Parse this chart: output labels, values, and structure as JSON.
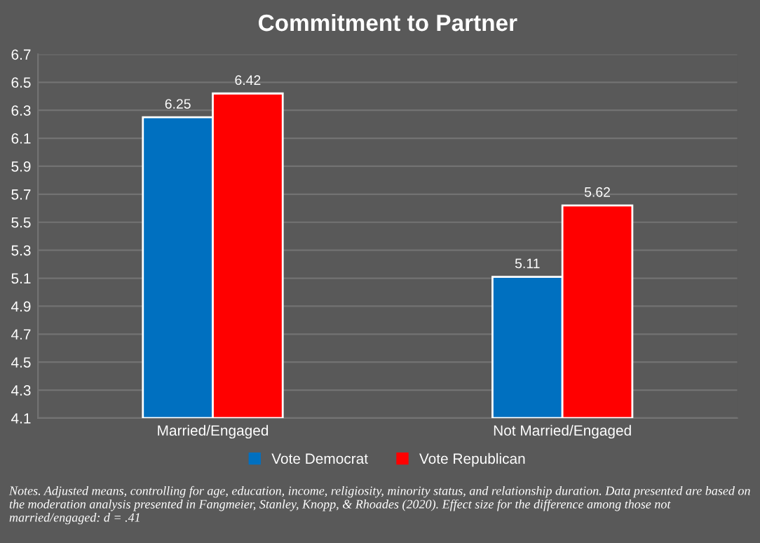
{
  "chart_data": {
    "type": "bar",
    "title": "Commitment to Partner",
    "categories": [
      "Married/Engaged",
      "Not Married/Engaged"
    ],
    "series": [
      {
        "name": "Vote Democrat",
        "color": "#0070c0",
        "values": [
          6.25,
          5.11
        ]
      },
      {
        "name": "Vote Republican",
        "color": "#ff0000",
        "values": [
          6.42,
          5.62
        ]
      }
    ],
    "ylim": [
      4.1,
      6.7
    ],
    "yticks": [
      4.1,
      4.3,
      4.5,
      4.7,
      4.9,
      5.1,
      5.3,
      5.5,
      5.7,
      5.9,
      6.1,
      6.3,
      6.5,
      6.7
    ],
    "grid": "y",
    "legend": "bottom",
    "data_labels": true,
    "annotations": [
      "Notes. Adjusted means, controlling for age, education, income, religiosity, minority status, and relationship duration. Data presented are based on the moderation analysis presented in Fangmeier, Stanley, Knopp, & Rhoades (2020). Effect size for the difference among those not married/engaged: d = .41"
    ]
  }
}
